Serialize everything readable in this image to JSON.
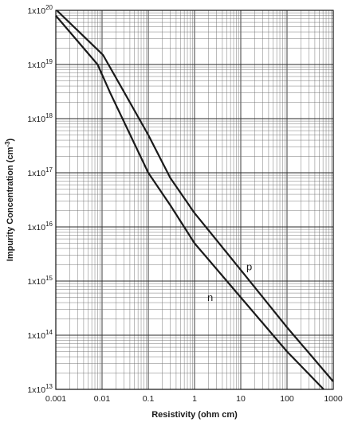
{
  "chart_data": {
    "type": "line",
    "title": "",
    "xlabel": "Resistivity (ohm cm)",
    "ylabel_main": "Impurity Concentration (cm",
    "ylabel_exp": "-3",
    "ylabel_close": ")",
    "x_scale": "log",
    "y_scale": "log",
    "xlim": [
      0.001,
      1000
    ],
    "ylim": [
      10000000000000.0,
      1e+20
    ],
    "grid": true,
    "x_ticks": [
      0.001,
      0.01,
      0.1,
      1,
      10,
      100,
      1000
    ],
    "x_tick_labels": [
      "0.001",
      "0.01",
      "0.1",
      "1",
      "10",
      "100",
      "1000"
    ],
    "y_ticks": [
      10000000000000.0,
      100000000000000.0,
      1000000000000000.0,
      1e+16,
      1e+17,
      1e+18,
      1e+19,
      1e+20
    ],
    "y_tick_labels": [
      {
        "base": "1x10",
        "exp": "13"
      },
      {
        "base": "1x10",
        "exp": "14"
      },
      {
        "base": "1x10",
        "exp": "15"
      },
      {
        "base": "1x10",
        "exp": "16"
      },
      {
        "base": "1x10",
        "exp": "17"
      },
      {
        "base": "1x10",
        "exp": "18"
      },
      {
        "base": "1x10",
        "exp": "19"
      },
      {
        "base": "1x10",
        "exp": "20"
      }
    ],
    "series": [
      {
        "name": "p",
        "x": [
          0.00105,
          0.0105,
          0.032,
          0.1,
          0.3,
          1,
          10,
          100,
          1000
        ],
        "y": [
          1e+20,
          1.5e+19,
          2.8e+18,
          5e+17,
          8e+16,
          1.8e+16,
          1600000000000000.0,
          140000000000000.0,
          14000000000000.0
        ]
      },
      {
        "name": "n",
        "x": [
          0.001,
          0.008,
          0.015,
          0.1,
          0.3,
          1,
          10,
          100,
          620
        ],
        "y": [
          8e+19,
          1e+19,
          3e+18,
          1e+17,
          2.5e+16,
          5000000000000000.0,
          500000000000000.0,
          50000000000000.0,
          10000000000000.0
        ]
      }
    ]
  }
}
